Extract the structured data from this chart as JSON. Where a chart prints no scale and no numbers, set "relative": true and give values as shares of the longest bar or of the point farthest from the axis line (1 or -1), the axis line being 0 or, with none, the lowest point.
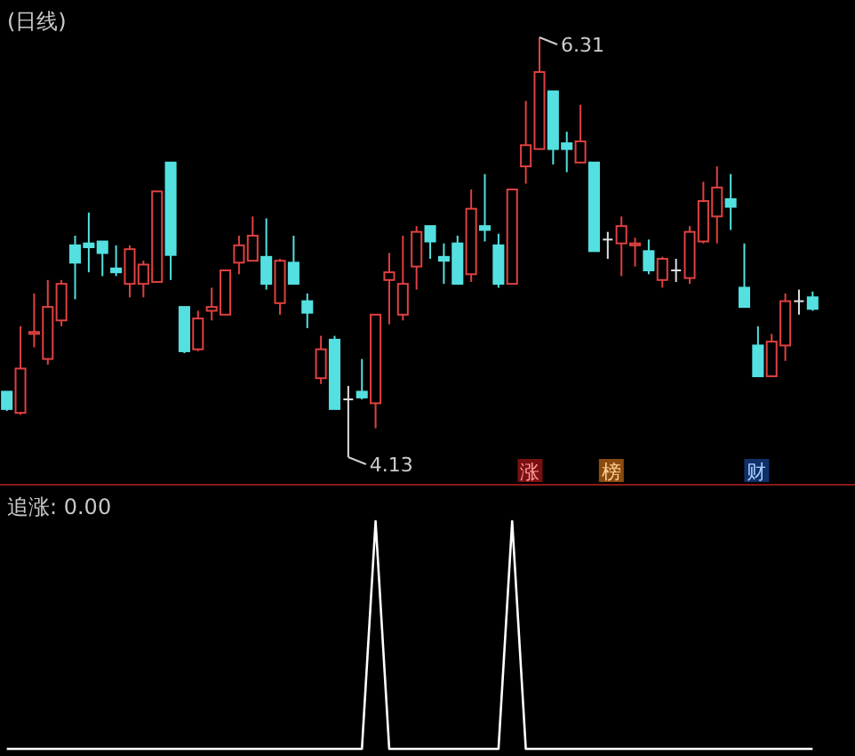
{
  "chart_data": [
    {
      "type": "candlestick",
      "title": "(日线)",
      "categories": [
        null,
        null,
        null,
        null,
        null,
        null,
        null,
        null,
        null,
        null,
        null,
        null,
        null,
        null,
        null,
        null,
        null,
        null,
        null,
        null,
        null,
        null,
        null,
        null,
        null,
        null,
        null,
        null,
        null,
        null,
        null,
        null,
        null,
        null,
        null,
        null,
        null,
        null,
        null,
        null,
        null,
        null,
        null,
        null,
        null,
        null,
        null,
        null,
        null,
        null,
        null,
        null,
        null,
        null,
        null,
        null,
        null,
        null,
        null,
        null
      ],
      "ohlc": [
        [
          4.47,
          4.47,
          4.37,
          4.38
        ],
        [
          4.36,
          4.81,
          4.35,
          4.59
        ],
        [
          4.77,
          4.98,
          4.7,
          4.78
        ],
        [
          4.64,
          5.05,
          4.61,
          4.91
        ],
        [
          4.84,
          5.05,
          4.81,
          5.03
        ],
        [
          5.23,
          5.28,
          4.95,
          5.14
        ],
        [
          5.24,
          5.4,
          5.09,
          5.22
        ],
        [
          5.25,
          5.25,
          5.07,
          5.19
        ],
        [
          5.11,
          5.23,
          5.07,
          5.09
        ],
        [
          5.03,
          5.23,
          4.96,
          5.21
        ],
        [
          5.03,
          5.15,
          4.96,
          5.13
        ],
        [
          5.04,
          5.51,
          5.04,
          5.51
        ],
        [
          5.66,
          5.66,
          5.05,
          5.18
        ],
        [
          4.91,
          4.91,
          4.67,
          4.68
        ],
        [
          4.69,
          4.89,
          4.68,
          4.85
        ],
        [
          4.89,
          5.01,
          4.84,
          4.91
        ],
        [
          4.87,
          5.1,
          4.87,
          5.1
        ],
        [
          5.14,
          5.28,
          5.08,
          5.23
        ],
        [
          5.15,
          5.38,
          5.15,
          5.28
        ],
        [
          5.17,
          5.37,
          5.0,
          5.03
        ],
        [
          4.93,
          5.16,
          4.87,
          5.15
        ],
        [
          5.14,
          5.28,
          5.03,
          5.03
        ],
        [
          4.94,
          4.98,
          4.8,
          4.88
        ],
        [
          4.54,
          4.76,
          4.51,
          4.69
        ],
        [
          4.74,
          4.76,
          4.38,
          4.38
        ],
        [
          4.43,
          4.5,
          4.13,
          4.43
        ],
        [
          4.47,
          4.64,
          4.43,
          4.44
        ],
        [
          4.41,
          4.87,
          4.28,
          4.87
        ],
        [
          5.05,
          5.19,
          4.82,
          5.09
        ],
        [
          4.87,
          5.28,
          4.84,
          5.03
        ],
        [
          5.12,
          5.33,
          5.0,
          5.3
        ],
        [
          5.33,
          5.33,
          5.16,
          5.25
        ],
        [
          5.17,
          5.24,
          5.03,
          5.15
        ],
        [
          5.24,
          5.28,
          5.03,
          5.03
        ],
        [
          5.08,
          5.52,
          5.04,
          5.42
        ],
        [
          5.33,
          5.6,
          5.25,
          5.31
        ],
        [
          5.23,
          5.29,
          5.01,
          5.03
        ],
        [
          5.03,
          5.52,
          5.03,
          5.52
        ],
        [
          5.64,
          5.98,
          5.55,
          5.75
        ],
        [
          5.73,
          6.31,
          5.73,
          6.13
        ],
        [
          6.03,
          6.03,
          5.65,
          5.73
        ],
        [
          5.76,
          5.82,
          5.61,
          5.73
        ],
        [
          5.66,
          5.96,
          5.66,
          5.77
        ],
        [
          5.66,
          5.66,
          5.2,
          5.2
        ],
        [
          5.26,
          5.3,
          5.16,
          5.26
        ],
        [
          5.24,
          5.38,
          5.07,
          5.33
        ],
        [
          5.23,
          5.27,
          5.12,
          5.24
        ],
        [
          5.2,
          5.26,
          5.08,
          5.1
        ],
        [
          5.05,
          5.17,
          5.01,
          5.16
        ],
        [
          5.1,
          5.16,
          5.04,
          5.1
        ],
        [
          5.06,
          5.33,
          5.03,
          5.3
        ],
        [
          5.25,
          5.56,
          5.24,
          5.46
        ],
        [
          5.38,
          5.64,
          5.24,
          5.53
        ],
        [
          5.47,
          5.6,
          5.31,
          5.43
        ],
        [
          5.01,
          5.24,
          4.91,
          4.91
        ],
        [
          4.71,
          4.81,
          4.55,
          4.55
        ],
        [
          4.55,
          4.77,
          4.55,
          4.73
        ],
        [
          4.71,
          4.98,
          4.63,
          4.94
        ],
        [
          4.94,
          5.0,
          4.87,
          4.94
        ],
        [
          4.96,
          4.99,
          4.89,
          4.9
        ]
      ],
      "colors": [
        "#54e0e0",
        "#e04040",
        "#e04040",
        "#e04040",
        "#e04040",
        "#54e0e0",
        "#54e0e0",
        "#54e0e0",
        "#54e0e0",
        "#e04040",
        "#e04040",
        "#e04040",
        "#54e0e0",
        "#54e0e0",
        "#e04040",
        "#e04040",
        "#e04040",
        "#e04040",
        "#e04040",
        "#54e0e0",
        "#e04040",
        "#54e0e0",
        "#54e0e0",
        "#e04040",
        "#54e0e0",
        "#e0e0e0",
        "#54e0e0",
        "#e04040",
        "#e04040",
        "#e04040",
        "#e04040",
        "#54e0e0",
        "#54e0e0",
        "#54e0e0",
        "#e04040",
        "#54e0e0",
        "#54e0e0",
        "#e04040",
        "#e04040",
        "#e04040",
        "#54e0e0",
        "#54e0e0",
        "#e04040",
        "#54e0e0",
        "#e0e0e0",
        "#e04040",
        "#e04040",
        "#54e0e0",
        "#e04040",
        "#e0e0e0",
        "#e04040",
        "#e04040",
        "#e04040",
        "#54e0e0",
        "#54e0e0",
        "#54e0e0",
        "#e04040",
        "#e04040",
        "#e0e0e0",
        "#54e0e0"
      ],
      "annotations": [
        "6.31",
        "4.13",
        "涨",
        "榜",
        "财"
      ]
    },
    {
      "type": "line",
      "title": "追涨: 0.00",
      "relative": true,
      "categories": [
        null,
        null,
        null,
        null,
        null,
        null,
        null,
        null,
        null,
        null,
        null,
        null,
        null,
        null,
        null,
        null,
        null,
        null,
        null,
        null,
        null,
        null,
        null,
        null,
        null,
        null,
        null,
        null,
        null,
        null,
        null,
        null,
        null,
        null,
        null,
        null,
        null,
        null,
        null,
        null,
        null,
        null,
        null,
        null,
        null,
        null,
        null,
        null,
        null,
        null,
        null,
        null,
        null,
        null,
        null,
        null,
        null,
        null,
        null,
        null
      ],
      "series": [
        {
          "color": "#ffffff",
          "values": [
            0,
            0,
            0,
            0,
            0,
            0,
            0,
            0,
            0,
            0,
            0,
            0,
            0,
            0,
            0,
            0,
            0,
            0,
            0,
            0,
            0,
            0,
            0,
            0,
            0,
            0,
            0,
            1,
            0,
            0,
            0,
            0,
            0,
            0,
            0,
            0,
            0,
            1,
            0,
            0,
            0,
            0,
            0,
            0,
            0,
            0,
            0,
            0,
            0,
            0,
            0,
            0,
            0,
            0,
            0,
            0,
            0,
            0,
            0,
            0
          ]
        }
      ]
    }
  ]
}
